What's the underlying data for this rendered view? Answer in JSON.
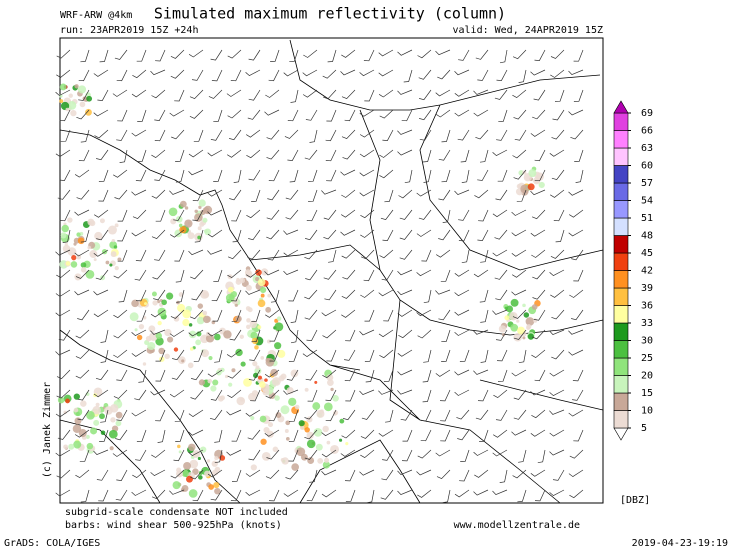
{
  "header": {
    "model": "WRF-ARW @4km",
    "title": "Simulated maximum reflectivity (column)",
    "run": "run: 23APR2019 15Z +24h",
    "valid": "valid: Wed, 24APR2019 15Z"
  },
  "colorbar": {
    "levels": [
      5,
      10,
      15,
      20,
      25,
      30,
      33,
      36,
      39,
      42,
      45,
      48,
      51,
      54,
      57,
      60,
      63,
      66,
      69
    ],
    "colors": [
      "#ffffff",
      "#ecdcd4",
      "#c8a898",
      "#c8f4bc",
      "#90e47c",
      "#4cc040",
      "#1e9a1e",
      "#ffffa0",
      "#ffc040",
      "#ff9020",
      "#f04010",
      "#c00000",
      "#d4e0ff",
      "#9898ff",
      "#6a6ae6",
      "#4444c4",
      "#ffc4ff",
      "#ff80ff",
      "#e040e0",
      "#b000b0"
    ],
    "unit": "[DBZ]"
  },
  "footer": {
    "note": "subgrid-scale condensate NOT included",
    "barbs": "barbs: wind shear 500-925hPa (knots)",
    "website": "www.modellzentrale.de",
    "software": "GrADS: COLA/IGES",
    "timestamp": "2019-04-23-19:19",
    "credit": "(c) Janek Zimmer"
  }
}
